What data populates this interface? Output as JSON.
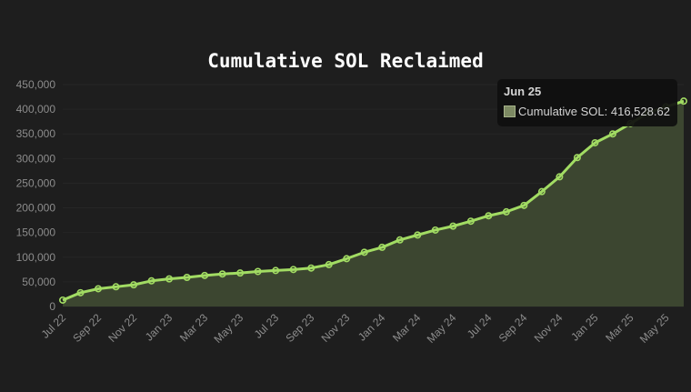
{
  "chart_data": {
    "type": "area",
    "title": "Cumulative SOL Reclaimed",
    "ylim": [
      0,
      450000
    ],
    "y_ticks": [
      "450,000",
      "400,000",
      "350,000",
      "300,000",
      "250,000",
      "200,000",
      "150,000",
      "100,000",
      "50,000",
      "0"
    ],
    "x_tick_labels": [
      "Jul 22",
      "Sep 22",
      "Nov 22",
      "Jan 23",
      "Mar 23",
      "May 23",
      "Jul 23",
      "Sep 23",
      "Nov 23",
      "Jan 24",
      "Mar 24",
      "May 24",
      "Jul 24",
      "Sep 24",
      "Nov 24",
      "Jan 25",
      "Mar 25",
      "May 25"
    ],
    "x": [
      "Jul 22",
      "Aug 22",
      "Sep 22",
      "Oct 22",
      "Nov 22",
      "Dec 22",
      "Jan 23",
      "Feb 23",
      "Mar 23",
      "Apr 23",
      "May 23",
      "Jun 23",
      "Jul 23",
      "Aug 23",
      "Sep 23",
      "Oct 23",
      "Nov 23",
      "Dec 23",
      "Jan 24",
      "Feb 24",
      "Mar 24",
      "Apr 24",
      "May 24",
      "Jun 24",
      "Jul 24",
      "Aug 24",
      "Sep 24",
      "Oct 24",
      "Nov 24",
      "Dec 24",
      "Jan 25",
      "Feb 25",
      "Mar 25",
      "Apr 25",
      "May 25",
      "Jun 25"
    ],
    "series": [
      {
        "name": "Cumulative SOL",
        "values": [
          13000,
          28000,
          36000,
          40000,
          44000,
          52000,
          56000,
          59000,
          63000,
          66000,
          68000,
          71000,
          73000,
          75000,
          78000,
          85000,
          97000,
          110000,
          120000,
          135000,
          145000,
          155000,
          163000,
          173000,
          184000,
          192000,
          205000,
          233000,
          263000,
          302000,
          332000,
          350000,
          371000,
          393000,
          405000,
          416528.62
        ]
      }
    ],
    "colors": {
      "line": "#a2dc63",
      "fill": "#3c4630",
      "grid": "#262626",
      "background": "#1e1e1e"
    },
    "grid": true,
    "legend": "none"
  },
  "tooltip": {
    "title": "Jun 25",
    "label": "Cumulative SOL: 416,528.62",
    "swatch_color": "#7d8a63"
  }
}
